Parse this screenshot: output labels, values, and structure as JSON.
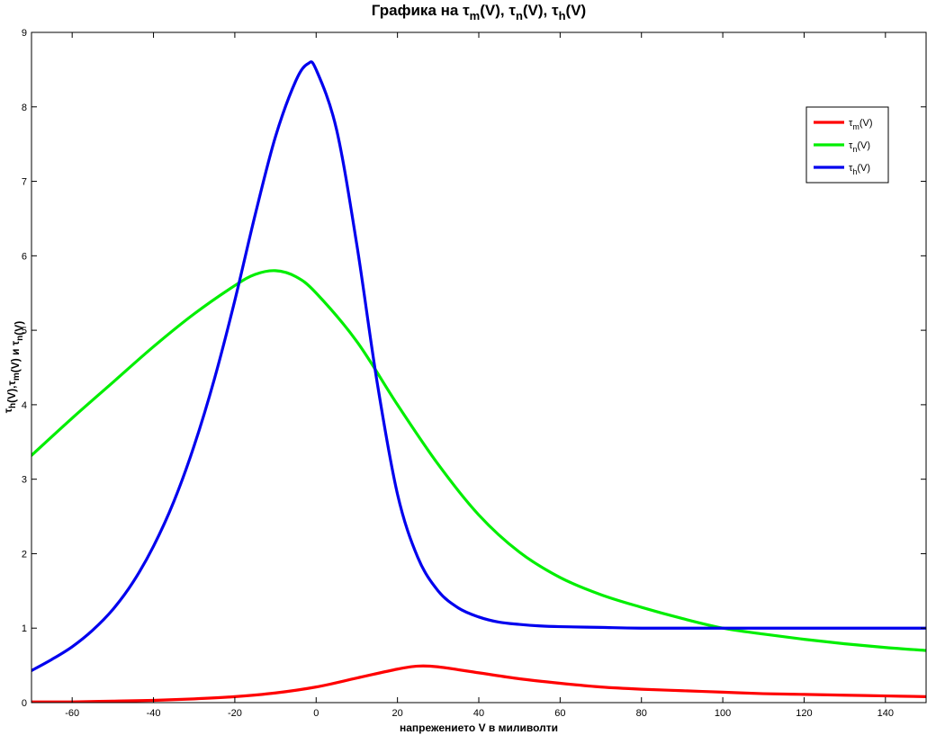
{
  "chart_data": {
    "type": "line",
    "title": {
      "prefix": "Графика на ",
      "sym": "τ",
      "subs": [
        "m",
        "n",
        "h"
      ],
      "arg": "(V)"
    },
    "title_text": "Графика на τm(V), τn(V), τh(V)",
    "xlabel": "напрежението V в миливолти",
    "ylabel": {
      "parts": [
        {
          "t": "τ",
          "sub": "h"
        },
        {
          "t": "(V),"
        },
        {
          "t": "τ",
          "sub": "m"
        },
        {
          "t": "(V) и "
        },
        {
          "t": "τ",
          "sub": "n"
        },
        {
          "t": "(V)"
        }
      ]
    },
    "ylabel_text": "τh(V),τm(V) и τn(V)",
    "xlim": [
      -70,
      150
    ],
    "ylim": [
      0,
      9
    ],
    "xticks": [
      -60,
      -40,
      -20,
      0,
      20,
      40,
      60,
      80,
      100,
      120,
      140
    ],
    "yticks": [
      0,
      1,
      2,
      3,
      4,
      5,
      6,
      7,
      8,
      9
    ],
    "grid": false,
    "legend_position": "top-right",
    "series": [
      {
        "name": "τm(V)",
        "sym": "τ",
        "sub": "m",
        "arg": "(V)",
        "color": "#ff0000",
        "x": [
          -70,
          -60,
          -50,
          -40,
          -30,
          -20,
          -10,
          0,
          10,
          20,
          25,
          30,
          40,
          50,
          60,
          70,
          80,
          90,
          100,
          110,
          120,
          130,
          140,
          150
        ],
        "y": [
          0.01,
          0.01,
          0.02,
          0.03,
          0.05,
          0.08,
          0.13,
          0.21,
          0.33,
          0.45,
          0.49,
          0.48,
          0.4,
          0.32,
          0.26,
          0.21,
          0.18,
          0.16,
          0.14,
          0.12,
          0.11,
          0.1,
          0.09,
          0.08
        ]
      },
      {
        "name": "τn(V)",
        "sym": "τ",
        "sub": "n",
        "arg": "(V)",
        "color": "#00ee00",
        "x": [
          -70,
          -60,
          -50,
          -40,
          -30,
          -20,
          -15,
          -10,
          -5,
          0,
          10,
          20,
          30,
          40,
          50,
          60,
          70,
          80,
          90,
          100,
          110,
          120,
          130,
          140,
          150
        ],
        "y": [
          3.32,
          3.82,
          4.3,
          4.78,
          5.22,
          5.6,
          5.75,
          5.8,
          5.72,
          5.5,
          4.85,
          4.0,
          3.2,
          2.52,
          2.02,
          1.68,
          1.45,
          1.28,
          1.13,
          1.0,
          0.92,
          0.85,
          0.79,
          0.74,
          0.7
        ]
      },
      {
        "name": "τh(V)",
        "sym": "τ",
        "sub": "h",
        "arg": "(V)",
        "color": "#0000ee",
        "x": [
          -70,
          -65,
          -60,
          -55,
          -50,
          -45,
          -40,
          -35,
          -30,
          -25,
          -20,
          -15,
          -10,
          -5,
          -2,
          0,
          5,
          10,
          15,
          20,
          25,
          30,
          35,
          40,
          45,
          50,
          55,
          60,
          70,
          80,
          100,
          120,
          150
        ],
        "y": [
          0.43,
          0.58,
          0.75,
          0.97,
          1.25,
          1.62,
          2.1,
          2.7,
          3.45,
          4.35,
          5.4,
          6.55,
          7.6,
          8.35,
          8.58,
          8.5,
          7.7,
          6.15,
          4.3,
          2.8,
          1.95,
          1.5,
          1.27,
          1.15,
          1.08,
          1.05,
          1.03,
          1.02,
          1.01,
          1.0,
          1.0,
          1.0,
          1.0
        ]
      }
    ]
  }
}
